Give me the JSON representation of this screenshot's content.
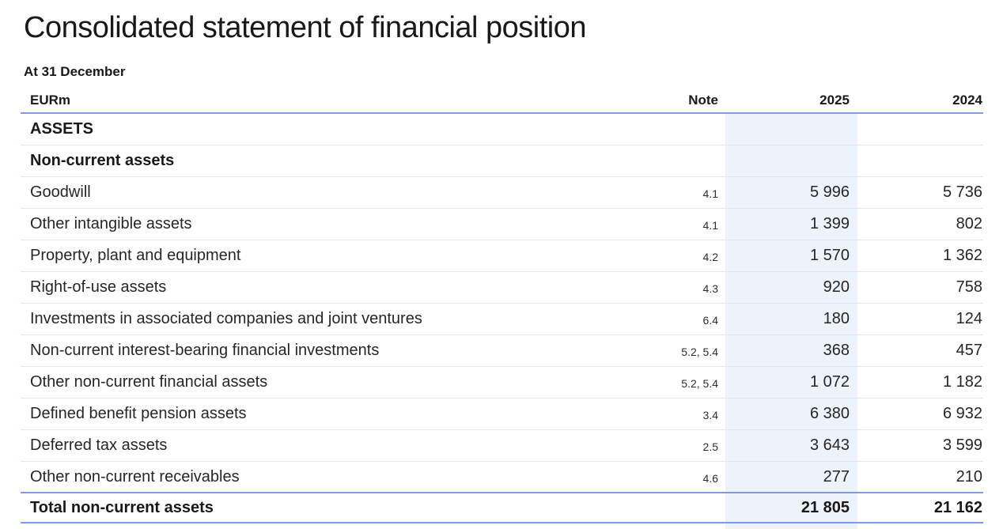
{
  "page": {
    "title": "Consolidated statement of financial position",
    "subtitle": "At 31 December"
  },
  "colors": {
    "accent_line": "#7d9be8",
    "row_divider": "#dbe7f8",
    "column_highlight": "#edf2fb",
    "text_primary": "#191919",
    "text_secondary": "#262626"
  },
  "table": {
    "columns": {
      "label": "EURm",
      "note": "Note",
      "year_2025": "2025",
      "year_2024": "2024"
    },
    "rows": [
      {
        "type": "section",
        "label": "ASSETS",
        "note": "",
        "y2025": "",
        "y2024": ""
      },
      {
        "type": "section",
        "label": "Non-current assets",
        "note": "",
        "y2025": "",
        "y2024": ""
      },
      {
        "type": "data",
        "label": "Goodwill",
        "note": "4.1",
        "y2025": "5 996",
        "y2024": "5 736"
      },
      {
        "type": "data",
        "label": "Other intangible assets",
        "note": "4.1",
        "y2025": "1 399",
        "y2024": "802"
      },
      {
        "type": "data",
        "label": "Property, plant and equipment",
        "note": "4.2",
        "y2025": "1 570",
        "y2024": "1 362"
      },
      {
        "type": "data",
        "label": "Right-of-use assets",
        "note": "4.3",
        "y2025": "920",
        "y2024": "758"
      },
      {
        "type": "data",
        "label": "Investments in associated companies and joint ventures",
        "note": "6.4",
        "y2025": "180",
        "y2024": "124"
      },
      {
        "type": "data",
        "label": "Non-current interest-bearing financial investments",
        "note": "5.2, 5.4",
        "y2025": "368",
        "y2024": "457"
      },
      {
        "type": "data",
        "label": "Other non-current financial assets",
        "note": "5.2, 5.4",
        "y2025": "1 072",
        "y2024": "1 182"
      },
      {
        "type": "data",
        "label": "Defined benefit pension assets",
        "note": "3.4",
        "y2025": "6 380",
        "y2024": "6 932"
      },
      {
        "type": "data",
        "label": "Deferred tax assets",
        "note": "2.5",
        "y2025": "3 643",
        "y2024": "3 599"
      },
      {
        "type": "data",
        "label": "Other non-current receivables",
        "note": "4.6",
        "y2025": "277",
        "y2024": "210"
      },
      {
        "type": "total",
        "label": "Total non-current assets",
        "note": "",
        "y2025": "21 805",
        "y2024": "21 162"
      }
    ]
  }
}
